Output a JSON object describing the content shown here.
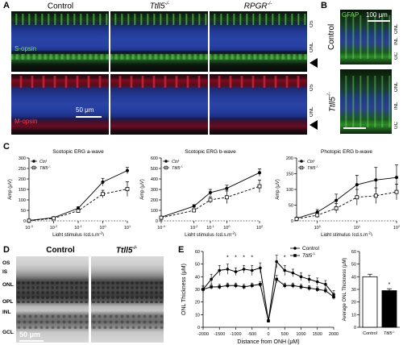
{
  "panelA": {
    "label": "A",
    "columns": [
      "Control",
      "Ttll5",
      "RPGR"
    ],
    "col_sup": [
      "",
      "-/-",
      "-/-"
    ],
    "stain_top": "S-opsin",
    "stain_bottom": "M-opsin",
    "scalebar": "50 μm",
    "layers_top": [
      "OS",
      "ONL"
    ],
    "layers_bottom": [
      "OS",
      "ONL"
    ],
    "colors": {
      "green": "#6fe05a",
      "red": "#e8283c",
      "blue": "#2a44a6"
    }
  },
  "panelB": {
    "label": "B",
    "stain": "GFAP",
    "scalebar": "100 μm",
    "rows": [
      "Control",
      "Ttll5"
    ],
    "row_sup": [
      "",
      "-/-"
    ],
    "layers": [
      "ONL",
      "INL",
      "GC"
    ]
  },
  "panelC": {
    "label": "C",
    "legend_ctrl": "Ctrl",
    "legend_ko": "Ttll5",
    "legend_ko_sup": "-/-",
    "ylabel": "Amp (μV)",
    "xlabel": "Light stimulus (cd.s.m",
    "xlabel_sup": "-2",
    "xlabel_end": ")"
  },
  "panelD": {
    "label": "D",
    "columns": [
      "Control",
      "Ttll5"
    ],
    "col_sup": [
      "",
      "-/-"
    ],
    "layers": [
      "OS",
      "IS",
      "ONL",
      "OPL",
      "INL",
      "GCL"
    ],
    "scalebar": "50 μm"
  },
  "panelE": {
    "label": "E",
    "legend": [
      "Control",
      "Ttll5"
    ],
    "legend_sup": [
      "",
      "-/-"
    ]
  },
  "chart_data": [
    {
      "type": "line",
      "title": "Scotopic ERG a-wave",
      "xlabel": "Light stimulus (cd.s.m-2)",
      "ylabel": "Amp (μV)",
      "xscale": "log",
      "x": [
        0.001,
        0.01,
        0.1,
        1,
        10
      ],
      "x_ticks": [
        "10",
        "10",
        "10",
        "10",
        "10"
      ],
      "x_tick_sup": [
        "-3",
        "-2",
        "-1",
        "0",
        "1"
      ],
      "ylim": [
        0,
        300
      ],
      "y_ticks": [
        0,
        50,
        100,
        150,
        200,
        250,
        300
      ],
      "series": [
        {
          "name": "Ctrl",
          "values": [
            2,
            15,
            60,
            185,
            240
          ],
          "err": [
            2,
            4,
            8,
            18,
            15
          ],
          "marker": "filled",
          "dash": false
        },
        {
          "name": "Ttll5-/-",
          "values": [
            1,
            12,
            48,
            128,
            152
          ],
          "err": [
            2,
            4,
            8,
            18,
            35
          ],
          "marker": "open",
          "dash": true
        }
      ]
    },
    {
      "type": "line",
      "title": "Scotopic ERG b-wave",
      "xlabel": "Light stimulus (cd.s.m-2)",
      "ylabel": "Amp (μV)",
      "xscale": "log",
      "x": [
        0.0001,
        0.01,
        0.1,
        1,
        100
      ],
      "x_ticks": [
        "10",
        "10",
        "10",
        "10",
        "10"
      ],
      "x_tick_sup": [
        "-4",
        "-2",
        "-1",
        "0",
        "2"
      ],
      "ylim": [
        0,
        600
      ],
      "y_ticks": [
        0,
        100,
        200,
        300,
        400,
        500,
        600
      ],
      "series": [
        {
          "name": "Ctrl",
          "values": [
            35,
            140,
            270,
            310,
            460
          ],
          "err": [
            5,
            15,
            30,
            30,
            35
          ],
          "marker": "filled",
          "dash": false
        },
        {
          "name": "Ttll5-/-",
          "values": [
            30,
            100,
            200,
            225,
            330
          ],
          "err": [
            5,
            15,
            30,
            60,
            60
          ],
          "marker": "open",
          "dash": true
        }
      ]
    },
    {
      "type": "line",
      "title": "Photopic ERG b-wave",
      "xlabel": "Light stimulus (cd.s.m-2)",
      "ylabel": "Amp (μV)",
      "xscale": "log",
      "x": [
        0.3,
        1,
        3,
        10,
        30,
        100
      ],
      "x_ticks": [
        "10",
        "10",
        "10"
      ],
      "x_tick_sup": [
        "0",
        "1",
        "2"
      ],
      "x_tick_pos": [
        1,
        10,
        100
      ],
      "ylim": [
        0,
        200
      ],
      "y_ticks": [
        0,
        50,
        100,
        150,
        200
      ],
      "series": [
        {
          "name": "Ctrl",
          "values": [
            8,
            28,
            65,
            115,
            130,
            138
          ],
          "err": [
            3,
            8,
            20,
            30,
            40,
            40
          ],
          "marker": "filled",
          "dash": false
        },
        {
          "name": "Ttll5-/-",
          "values": [
            6,
            18,
            40,
            75,
            80,
            92
          ],
          "err": [
            3,
            8,
            15,
            25,
            25,
            25
          ],
          "marker": "open",
          "dash": true
        }
      ]
    },
    {
      "type": "line",
      "title": "",
      "xlabel": "Distance from ONH (μM)",
      "ylabel": "ONL Thickness (μM)",
      "x": [
        -2000,
        -1750,
        -1500,
        -1250,
        -1000,
        -750,
        -500,
        -250,
        0,
        250,
        500,
        750,
        1000,
        1250,
        1500,
        1750,
        2000
      ],
      "x_ticks": [
        -2000,
        -1500,
        -1000,
        -500,
        0,
        500,
        1000,
        1500,
        2000
      ],
      "ylim": [
        0,
        60
      ],
      "y_ticks": [
        0,
        10,
        20,
        30,
        40,
        50,
        60
      ],
      "annotations": [
        "*",
        "*",
        "*",
        "*",
        "*"
      ],
      "annotation_x": [
        -1250,
        -1000,
        -750,
        -500,
        500
      ],
      "series": [
        {
          "name": "Control",
          "values": [
            30,
            38,
            45,
            46,
            44,
            46,
            45,
            47,
            5,
            52,
            45,
            43,
            40,
            38,
            36,
            34,
            26
          ],
          "err": [
            3,
            4,
            4,
            4,
            3,
            3,
            4,
            4,
            1,
            5,
            4,
            3,
            3,
            3,
            3,
            3,
            3
          ],
          "marker": "filled"
        },
        {
          "name": "Ttll5-/-",
          "values": [
            30,
            32,
            32,
            33,
            33,
            32,
            33,
            34,
            5,
            38,
            33,
            33,
            32,
            31,
            30,
            29,
            24
          ],
          "err": [
            2,
            2,
            2,
            2,
            2,
            2,
            2,
            2,
            1,
            3,
            2,
            2,
            2,
            2,
            2,
            2,
            2
          ],
          "marker": "filled-square"
        }
      ]
    },
    {
      "type": "bar",
      "title": "",
      "ylabel": "Average ONL Thickness (μM)",
      "categories": [
        "Control",
        "Ttll5"
      ],
      "category_sup": [
        "",
        "-/-"
      ],
      "values": [
        40,
        29
      ],
      "err": [
        2,
        1.5
      ],
      "ylim": [
        0,
        60
      ],
      "y_ticks": [
        0,
        10,
        20,
        30,
        40,
        50,
        60
      ],
      "annotation": "*",
      "fills": [
        "#ffffff",
        "#000000"
      ]
    }
  ]
}
